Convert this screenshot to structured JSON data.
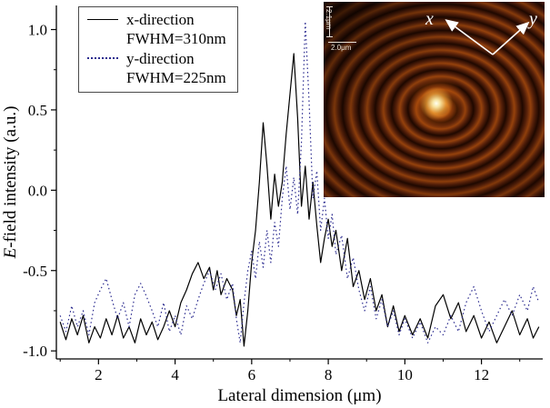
{
  "chart_data": {
    "type": "line",
    "title": "",
    "xlabel": "Lateral dimension (μm)",
    "ylabel": "E-field intensity (a.u.)",
    "ylabel_italic": "E",
    "ylabel_rest": "-field intensity (a.u.)",
    "xlim": [
      0.9,
      13.6
    ],
    "ylim": [
      -1.05,
      1.15
    ],
    "x_ticks": [
      2,
      4,
      6,
      8,
      10,
      12
    ],
    "x_minor_ticks": [
      1,
      3,
      5,
      7,
      9,
      11,
      13
    ],
    "y_ticks": [
      -1.0,
      -0.5,
      0.0,
      0.5,
      1.0
    ],
    "y_minor_ticks": [
      -0.75,
      -0.25,
      0.25,
      0.75
    ],
    "grid": false,
    "legend_position": "top-left",
    "series": [
      {
        "name": "x-direction",
        "fwhm": "FWHM=310nm",
        "style": "solid",
        "color": "#000000",
        "points": [
          [
            1.0,
            -0.82
          ],
          [
            1.15,
            -0.93
          ],
          [
            1.3,
            -0.8
          ],
          [
            1.45,
            -0.9
          ],
          [
            1.6,
            -0.78
          ],
          [
            1.75,
            -0.95
          ],
          [
            1.9,
            -0.85
          ],
          [
            2.05,
            -0.92
          ],
          [
            2.2,
            -0.8
          ],
          [
            2.35,
            -0.9
          ],
          [
            2.5,
            -0.78
          ],
          [
            2.65,
            -0.92
          ],
          [
            2.8,
            -0.85
          ],
          [
            2.95,
            -0.95
          ],
          [
            3.1,
            -0.8
          ],
          [
            3.25,
            -0.9
          ],
          [
            3.4,
            -0.82
          ],
          [
            3.55,
            -0.93
          ],
          [
            3.7,
            -0.85
          ],
          [
            3.85,
            -0.75
          ],
          [
            4.0,
            -0.85
          ],
          [
            4.15,
            -0.7
          ],
          [
            4.3,
            -0.62
          ],
          [
            4.45,
            -0.52
          ],
          [
            4.6,
            -0.45
          ],
          [
            4.75,
            -0.55
          ],
          [
            4.9,
            -0.48
          ],
          [
            5.0,
            -0.62
          ],
          [
            5.1,
            -0.5
          ],
          [
            5.2,
            -0.65
          ],
          [
            5.35,
            -0.55
          ],
          [
            5.5,
            -0.62
          ],
          [
            5.6,
            -0.78
          ],
          [
            5.7,
            -0.68
          ],
          [
            5.8,
            -0.97
          ],
          [
            5.9,
            -0.75
          ],
          [
            6.0,
            -0.45
          ],
          [
            6.1,
            -0.25
          ],
          [
            6.2,
            0.05
          ],
          [
            6.3,
            0.42
          ],
          [
            6.4,
            0.15
          ],
          [
            6.5,
            -0.18
          ],
          [
            6.6,
            0.1
          ],
          [
            6.7,
            -0.1
          ],
          [
            6.8,
            0.05
          ],
          [
            6.9,
            0.35
          ],
          [
            7.0,
            0.6
          ],
          [
            7.1,
            0.85
          ],
          [
            7.2,
            0.45
          ],
          [
            7.3,
            -0.1
          ],
          [
            7.4,
            0.15
          ],
          [
            7.5,
            -0.18
          ],
          [
            7.6,
            0.05
          ],
          [
            7.7,
            -0.22
          ],
          [
            7.8,
            -0.45
          ],
          [
            7.9,
            -0.3
          ],
          [
            8.0,
            -0.18
          ],
          [
            8.1,
            -0.35
          ],
          [
            8.2,
            -0.25
          ],
          [
            8.35,
            -0.5
          ],
          [
            8.5,
            -0.3
          ],
          [
            8.65,
            -0.6
          ],
          [
            8.8,
            -0.5
          ],
          [
            8.95,
            -0.68
          ],
          [
            9.1,
            -0.55
          ],
          [
            9.25,
            -0.75
          ],
          [
            9.4,
            -0.65
          ],
          [
            9.55,
            -0.85
          ],
          [
            9.7,
            -0.72
          ],
          [
            9.85,
            -0.88
          ],
          [
            10.0,
            -0.78
          ],
          [
            10.2,
            -0.9
          ],
          [
            10.4,
            -0.8
          ],
          [
            10.6,
            -0.92
          ],
          [
            10.8,
            -0.72
          ],
          [
            11.0,
            -0.65
          ],
          [
            11.2,
            -0.8
          ],
          [
            11.4,
            -0.7
          ],
          [
            11.6,
            -0.88
          ],
          [
            11.8,
            -0.78
          ],
          [
            12.0,
            -0.92
          ],
          [
            12.2,
            -0.82
          ],
          [
            12.4,
            -0.95
          ],
          [
            12.6,
            -0.85
          ],
          [
            12.8,
            -0.75
          ],
          [
            13.0,
            -0.9
          ],
          [
            13.2,
            -0.8
          ],
          [
            13.35,
            -0.92
          ],
          [
            13.5,
            -0.85
          ]
        ]
      },
      {
        "name": "y-direction",
        "fwhm": "FWHM=225nm",
        "style": "dotted",
        "color": "#2a2a8f",
        "points": [
          [
            1.0,
            -0.78
          ],
          [
            1.15,
            -0.88
          ],
          [
            1.3,
            -0.72
          ],
          [
            1.45,
            -0.85
          ],
          [
            1.6,
            -0.75
          ],
          [
            1.75,
            -0.9
          ],
          [
            1.9,
            -0.7
          ],
          [
            2.05,
            -0.62
          ],
          [
            2.2,
            -0.55
          ],
          [
            2.35,
            -0.68
          ],
          [
            2.5,
            -0.8
          ],
          [
            2.65,
            -0.7
          ],
          [
            2.8,
            -0.85
          ],
          [
            2.95,
            -0.65
          ],
          [
            3.1,
            -0.58
          ],
          [
            3.25,
            -0.66
          ],
          [
            3.4,
            -0.75
          ],
          [
            3.55,
            -0.85
          ],
          [
            3.7,
            -0.7
          ],
          [
            3.85,
            -0.88
          ],
          [
            4.0,
            -0.78
          ],
          [
            4.15,
            -0.9
          ],
          [
            4.3,
            -0.72
          ],
          [
            4.45,
            -0.8
          ],
          [
            4.6,
            -0.68
          ],
          [
            4.75,
            -0.58
          ],
          [
            4.9,
            -0.5
          ],
          [
            5.05,
            -0.62
          ],
          [
            5.2,
            -0.52
          ],
          [
            5.35,
            -0.68
          ],
          [
            5.5,
            -0.58
          ],
          [
            5.6,
            -0.8
          ],
          [
            5.7,
            -0.95
          ],
          [
            5.8,
            -0.7
          ],
          [
            5.9,
            -0.5
          ],
          [
            6.0,
            -0.38
          ],
          [
            6.1,
            -0.55
          ],
          [
            6.2,
            -0.32
          ],
          [
            6.3,
            -0.48
          ],
          [
            6.4,
            -0.25
          ],
          [
            6.5,
            -0.45
          ],
          [
            6.6,
            -0.2
          ],
          [
            6.7,
            -0.35
          ],
          [
            6.8,
            -0.05
          ],
          [
            6.9,
            0.15
          ],
          [
            7.0,
            -0.12
          ],
          [
            7.1,
            0.08
          ],
          [
            7.2,
            -0.15
          ],
          [
            7.3,
            0.3
          ],
          [
            7.4,
            1.05
          ],
          [
            7.5,
            0.55
          ],
          [
            7.6,
            -0.05
          ],
          [
            7.7,
            0.12
          ],
          [
            7.8,
            -0.25
          ],
          [
            7.9,
            -0.05
          ],
          [
            8.0,
            -0.3
          ],
          [
            8.1,
            -0.15
          ],
          [
            8.2,
            -0.4
          ],
          [
            8.35,
            -0.28
          ],
          [
            8.5,
            -0.55
          ],
          [
            8.65,
            -0.42
          ],
          [
            8.8,
            -0.62
          ],
          [
            8.95,
            -0.75
          ],
          [
            9.1,
            -0.6
          ],
          [
            9.25,
            -0.8
          ],
          [
            9.4,
            -0.68
          ],
          [
            9.55,
            -0.85
          ],
          [
            9.7,
            -0.75
          ],
          [
            9.85,
            -0.9
          ],
          [
            10.0,
            -0.8
          ],
          [
            10.2,
            -0.92
          ],
          [
            10.4,
            -0.82
          ],
          [
            10.6,
            -0.95
          ],
          [
            10.8,
            -0.85
          ],
          [
            11.0,
            -0.9
          ],
          [
            11.2,
            -0.78
          ],
          [
            11.4,
            -0.88
          ],
          [
            11.6,
            -0.7
          ],
          [
            11.8,
            -0.6
          ],
          [
            12.0,
            -0.75
          ],
          [
            12.2,
            -0.88
          ],
          [
            12.4,
            -0.78
          ],
          [
            12.6,
            -0.68
          ],
          [
            12.8,
            -0.78
          ],
          [
            13.0,
            -0.65
          ],
          [
            13.2,
            -0.75
          ],
          [
            13.35,
            -0.6
          ],
          [
            13.5,
            -0.7
          ]
        ]
      }
    ],
    "inset": {
      "description": "near-field optical image with concentric fringes and bright focal spot",
      "labels": {
        "x": "x",
        "y": "y",
        "scale_vertical": "2.1μm",
        "scale_horizontal": "2.0μm"
      },
      "colors": {
        "background": "#1f0800",
        "ring": "#96420c",
        "hotspot": "#ffffff"
      }
    }
  }
}
